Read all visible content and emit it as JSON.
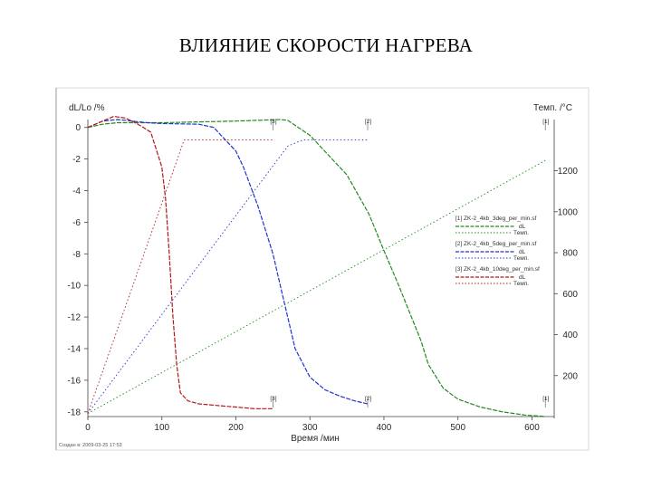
{
  "slide": {
    "title": "ВЛИЯНИЕ СКОРОСТИ НАГРЕВА"
  },
  "chart_data": {
    "type": "line",
    "xlabel": "Время /мин",
    "ylabel_left": "dL/Lo /%",
    "ylabel_right": "Темп. /°C",
    "xlim": [
      0,
      630
    ],
    "ylim_left": [
      -18.3,
      0.5
    ],
    "ylim_right": [
      0,
      1450
    ],
    "x_ticks": [
      0,
      100,
      200,
      300,
      400,
      500,
      600
    ],
    "y_left_ticks": [
      0,
      -2,
      -4,
      -6,
      -8,
      -10,
      -12,
      -14,
      -16,
      -18
    ],
    "y_right_ticks": [
      200,
      400,
      600,
      800,
      1000,
      1200
    ],
    "grid": false,
    "legend_position": "right",
    "legend": [
      {
        "file": "[1] ZK-2_4kb_3deg_per_min.sf",
        "curve_label": "dL",
        "temp_label": "Темп.",
        "color": "#1f8a1f"
      },
      {
        "file": "[2] ZK-2_4kb_5deg_per_min.sf",
        "curve_label": "dL",
        "temp_label": "Темп.",
        "color": "#2233cc"
      },
      {
        "file": "[3] ZK-2_4kb_10deg_per_min.sf",
        "curve_label": "dL",
        "temp_label": "Темп.",
        "color": "#b01818"
      }
    ],
    "series": [
      {
        "name": "[1] dL",
        "axis": "left",
        "color": "#1f8a1f",
        "x": [
          0,
          20,
          40,
          100,
          200,
          260,
          270,
          300,
          350,
          380,
          400,
          420,
          450,
          460,
          480,
          500,
          530,
          560,
          590,
          618
        ],
        "y": [
          0,
          0.2,
          0.3,
          0.3,
          0.4,
          0.5,
          0.45,
          -0.5,
          -3.0,
          -5.5,
          -7.8,
          -10.0,
          -13.5,
          -15.0,
          -16.5,
          -17.2,
          -17.7,
          -18.0,
          -18.2,
          -18.3
        ]
      },
      {
        "name": "[2] dL",
        "axis": "left",
        "color": "#2233cc",
        "x": [
          0,
          20,
          40,
          80,
          100,
          150,
          170,
          200,
          210,
          230,
          250,
          260,
          270,
          280,
          300,
          320,
          340,
          360,
          378
        ],
        "y": [
          0,
          0.4,
          0.5,
          0.3,
          0.25,
          0.2,
          0.0,
          -1.5,
          -2.5,
          -5.0,
          -8.0,
          -10.0,
          -12.0,
          -14.0,
          -15.8,
          -16.6,
          -17.0,
          -17.3,
          -17.5
        ]
      },
      {
        "name": "[3] dL",
        "axis": "left",
        "color": "#b01818",
        "x": [
          0,
          15,
          35,
          50,
          60,
          75,
          85,
          100,
          105,
          110,
          115,
          120,
          125,
          135,
          150,
          175,
          200,
          225,
          250
        ],
        "y": [
          0,
          0.3,
          0.7,
          0.6,
          0.4,
          0.0,
          -0.3,
          -2.5,
          -4.5,
          -8.0,
          -12.0,
          -15.0,
          -16.8,
          -17.3,
          -17.5,
          -17.6,
          -17.7,
          -17.8,
          -17.8
        ]
      },
      {
        "name": "[1] Темп.",
        "axis": "right",
        "color": "#1f8a1f",
        "x": [
          0,
          618
        ],
        "y": [
          15,
          1250
        ]
      },
      {
        "name": "[2] Темп.",
        "axis": "right",
        "color": "#2233cc",
        "x": [
          0,
          270,
          290,
          378
        ],
        "y": [
          15,
          1320,
          1350,
          1350
        ]
      },
      {
        "name": "[3] Темп.",
        "axis": "right",
        "color": "#b01818",
        "x": [
          0,
          130,
          250
        ],
        "y": [
          15,
          1350,
          1350
        ]
      }
    ],
    "end_markers": [
      {
        "label": "[3]",
        "x": 250,
        "where": "top"
      },
      {
        "label": "[2]",
        "x": 378,
        "where": "top"
      },
      {
        "label": "[1]",
        "x": 618,
        "where": "top"
      },
      {
        "label": "[3]",
        "x": 250,
        "where": "bottom"
      },
      {
        "label": "[2]",
        "x": 378,
        "where": "bottom"
      },
      {
        "label": "[1]",
        "x": 618,
        "where": "bottom"
      }
    ],
    "footer": "Создан в: 2009-03-25 17:53"
  }
}
